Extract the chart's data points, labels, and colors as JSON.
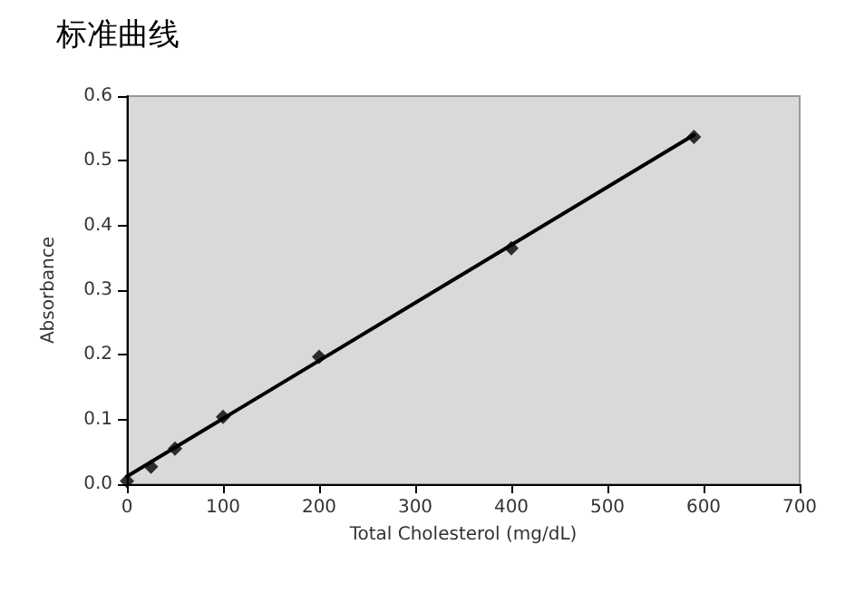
{
  "chart_data": {
    "type": "scatter",
    "title": "标准曲线",
    "xlabel": "Total Cholesterol (mg/dL)",
    "ylabel": "Absorbance",
    "marker": "diamond",
    "grid": false,
    "xlim": [
      0,
      700
    ],
    "xticks": [
      0,
      100,
      200,
      300,
      400,
      500,
      600,
      700
    ],
    "ylim": [
      0,
      0.6
    ],
    "yticks": [
      {
        "value": 0,
        "label": "0.0"
      },
      0.1,
      0.2,
      0.3,
      0.4,
      0.5,
      0.6
    ],
    "series": [
      {
        "color": "#000000",
        "x": [
          0,
          25,
          50,
          100,
          200,
          400,
          590
        ],
        "values": [
          0.005,
          0.027,
          0.055,
          0.104,
          0.197,
          0.365,
          0.537
        ]
      },
      {
        "type": "line",
        "color": "#000000",
        "x": [
          0,
          590
        ],
        "values": [
          0.012,
          0.54
        ],
        "marker": "none",
        "line_style": "solid"
      }
    ]
  }
}
